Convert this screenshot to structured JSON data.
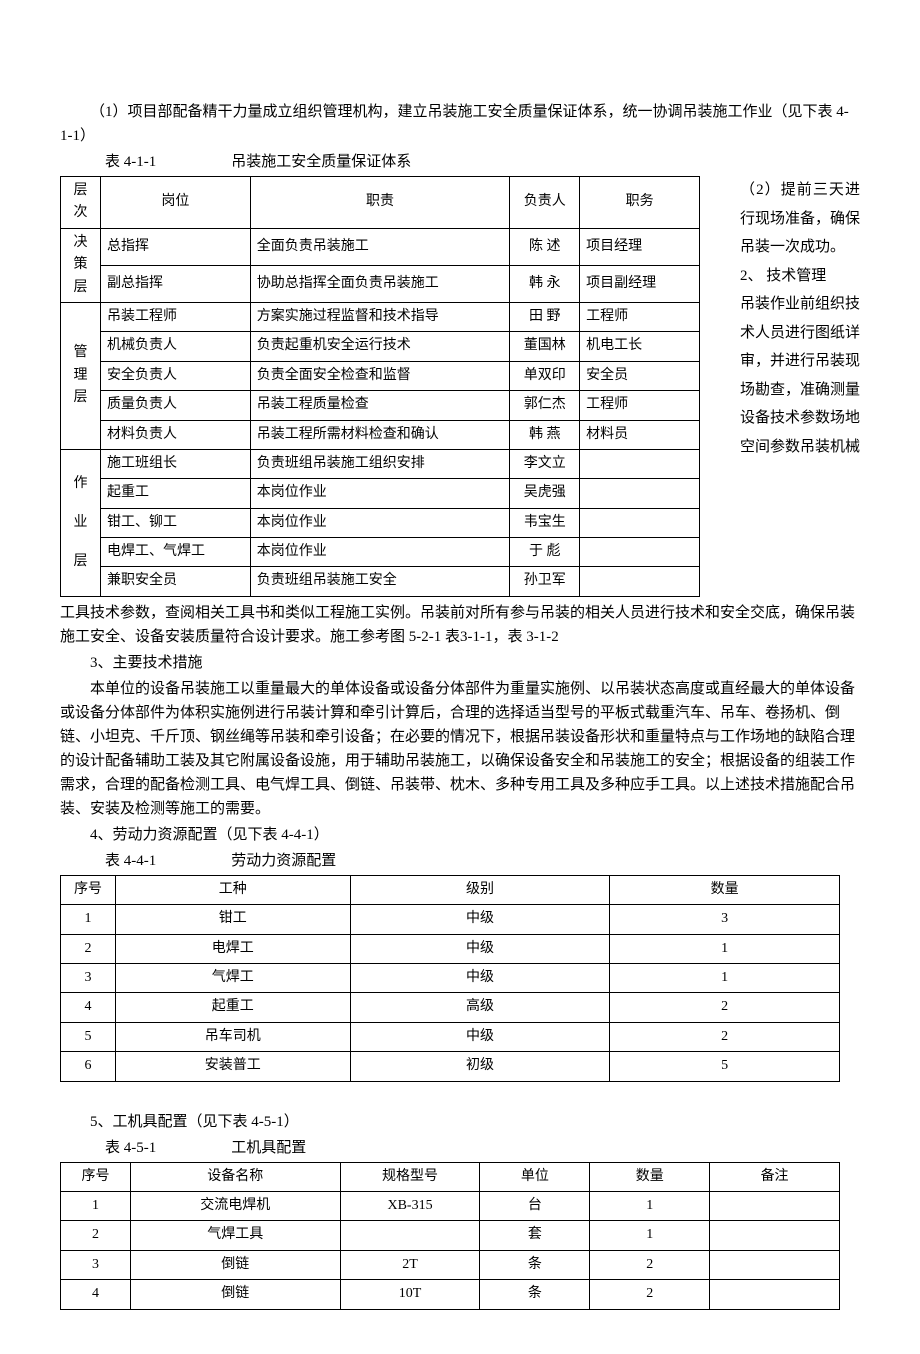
{
  "intro": {
    "p1": "（1）项目部配备精干力量成立组织管理机构，建立吊装施工安全质量保证体系，统一协调吊装施工作业（见下表 4-1-1）",
    "label411": "表 4-1-1　　　　　吊装施工安全质量保证体系"
  },
  "sideText": {
    "s1": "（2）提前三天进行现场准备，确保吊装一次成功。",
    "s2": "2、 技术管理",
    "s3": "吊装作业前组织技术人员进行图纸详审，并进行吊装现场勘查，准确测量设备技术参数场地空间参数吊装机械"
  },
  "table1": {
    "headers": {
      "h1": "层次",
      "h2": "岗位",
      "h3": "职责",
      "h4": "负责人",
      "h5": "职务"
    },
    "groups": [
      {
        "level": "决策层",
        "rows": [
          {
            "role": "总指挥",
            "duty": "全面负责吊装施工",
            "person": "陈  述",
            "title": "项目经理"
          },
          {
            "role": "副总指挥",
            "duty": "协助总指挥全面负责吊装施工",
            "person": "韩  永",
            "title": "项目副经理"
          }
        ]
      },
      {
        "level": "管理层",
        "rows": [
          {
            "role": "吊装工程师",
            "duty": "方案实施过程监督和技术指导",
            "person": "田  野",
            "title": "工程师"
          },
          {
            "role": "机械负责人",
            "duty": "负责起重机安全运行技术",
            "person": "董国林",
            "title": "机电工长"
          },
          {
            "role": "安全负责人",
            "duty": "负责全面安全检查和监督",
            "person": "单双印",
            "title": "安全员"
          },
          {
            "role": "质量负责人",
            "duty": "吊装工程质量检查",
            "person": "郭仁杰",
            "title": "工程师"
          },
          {
            "role": "材料负责人",
            "duty": "吊装工程所需材料检查和确认",
            "person": "韩  燕",
            "title": "材料员"
          }
        ]
      },
      {
        "level": "作\n\n业\n\n层",
        "rows": [
          {
            "role": "施工班组长",
            "duty": "负责班组吊装施工组织安排",
            "person": "李文立",
            "title": ""
          },
          {
            "role": "起重工",
            "duty": "本岗位作业",
            "person": "吴虎强",
            "title": ""
          },
          {
            "role": "钳工、铆工",
            "duty": "本岗位作业",
            "person": "韦宝生",
            "title": ""
          },
          {
            "role": "电焊工、气焊工",
            "duty": "本岗位作业",
            "person": "于  彪",
            "title": ""
          },
          {
            "role": "兼职安全员",
            "duty": "负责班组吊装施工安全",
            "person": "孙卫军",
            "title": ""
          }
        ]
      }
    ]
  },
  "middle": {
    "p1": "工具技术参数，查阅相关工具书和类似工程施工实例。吊装前对所有参与吊装的相关人员进行技术和安全交底，确保吊装施工安全、设备安装质量符合设计要求。施工参考图 5-2-1 表3-1-1，表 3-1-2",
    "p2": "3、主要技术措施",
    "p3": "本单位的设备吊装施工以重量最大的单体设备或设备分体部件为重量实施例、以吊装状态高度或直经最大的单体设备或设备分体部件为体积实施例进行吊装计算和牵引计算后，合理的选择适当型号的平板式载重汽车、吊车、卷扬机、倒链、小坦克、千斤顶、钢丝绳等吊装和牵引设备；在必要的情况下，根据吊装设备形状和重量特点与工作场地的缺陷合理的设计配备辅助工装及其它附属设备设施，用于辅助吊装施工，以确保设备安全和吊装施工的安全；根据设备的组装工作需求，合理的配备检测工具、电气焊工具、倒链、吊装带、枕木、多种专用工具及多种应手工具。以上述技术措施配合吊装、安装及检测等施工的需要。",
    "p4": "4、劳动力资源配置（见下表 4-4-1）",
    "label441": "表 4-4-1　　　　　劳动力资源配置"
  },
  "table2": {
    "headers": {
      "h1": "序号",
      "h2": "工种",
      "h3": "级别",
      "h4": "数量"
    },
    "rows": [
      {
        "n": "1",
        "trade": "钳工",
        "level": "中级",
        "qty": "3"
      },
      {
        "n": "2",
        "trade": "电焊工",
        "level": "中级",
        "qty": "1"
      },
      {
        "n": "3",
        "trade": "气焊工",
        "level": "中级",
        "qty": "1"
      },
      {
        "n": "4",
        "trade": "起重工",
        "level": "高级",
        "qty": "2"
      },
      {
        "n": "5",
        "trade": "吊车司机",
        "level": "中级",
        "qty": "2"
      },
      {
        "n": "6",
        "trade": "安装普工",
        "level": "初级",
        "qty": "5"
      }
    ]
  },
  "lower": {
    "p1": "5、工机具配置（见下表 4-5-1）",
    "label451": "表 4-5-1　　　　　工机具配置"
  },
  "table3": {
    "headers": {
      "h1": "序号",
      "h2": "设备名称",
      "h3": "规格型号",
      "h4": "单位",
      "h5": "数量",
      "h6": "备注"
    },
    "rows": [
      {
        "n": "1",
        "name": "交流电焊机",
        "spec": "XB-315",
        "unit": "台",
        "qty": "1",
        "note": ""
      },
      {
        "n": "2",
        "name": "气焊工具",
        "spec": "",
        "unit": "套",
        "qty": "1",
        "note": ""
      },
      {
        "n": "3",
        "name": "倒链",
        "spec": "2T",
        "unit": "条",
        "qty": "2",
        "note": ""
      },
      {
        "n": "4",
        "name": "倒链",
        "spec": "10T",
        "unit": "条",
        "qty": "2",
        "note": ""
      }
    ]
  }
}
